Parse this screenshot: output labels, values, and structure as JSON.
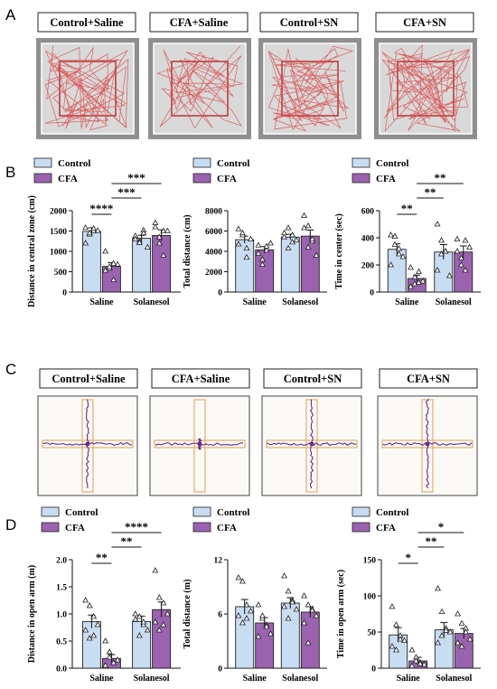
{
  "colors": {
    "control": "#c8dcf2",
    "cfa": "#9b62b0",
    "axis": "#111111",
    "path": "#d94a4a",
    "arm": "#e0b070",
    "trace": "#6a2a8a"
  },
  "panels": {
    "A": {
      "letter": "A",
      "titles": [
        "Control+Saline",
        "CFA+Saline",
        "Control+SN",
        "CFA+SN"
      ]
    },
    "B": {
      "letter": "B"
    },
    "C": {
      "letter": "C",
      "titles": [
        "Control+Saline",
        "CFA+Saline",
        "Control+SN",
        "CFA+SN"
      ]
    },
    "D": {
      "letter": "D"
    }
  },
  "chart_data": [
    {
      "id": "b1",
      "type": "bar",
      "ylabel": "Distance in central zone (cm)",
      "categories": [
        "Saline",
        "Solanesol"
      ],
      "ylim": [
        0,
        2000
      ],
      "yticks": [
        0,
        500,
        1000,
        1500,
        2000
      ],
      "legend": [
        "Control",
        "CFA"
      ],
      "legend_placement": "top-left",
      "series": [
        {
          "name": "Control",
          "values": [
            1490,
            1320
          ],
          "err": [
            90,
            75
          ],
          "points": [
            [
              1580,
              1420,
              1500,
              1510,
              1200,
              1450,
              1560
            ],
            [
              1380,
              1250,
              1520,
              1100,
              1300,
              1210,
              1450
            ]
          ]
        },
        {
          "name": "CFA",
          "values": [
            630,
            1390
          ],
          "err": [
            90,
            140
          ],
          "points": [
            [
              1000,
              580,
              300,
              680,
              530,
              620,
              700
            ],
            [
              1600,
              1200,
              900,
              1500,
              1700,
              1350,
              1500
            ]
          ]
        }
      ],
      "significance": [
        {
          "from": [
            0,
            0
          ],
          "to": [
            0,
            1
          ],
          "label": "****"
        },
        {
          "from": [
            0,
            1
          ],
          "to": [
            1,
            0
          ],
          "label": "***"
        },
        {
          "from": [
            0,
            1
          ],
          "to": [
            1,
            1
          ],
          "label": "***"
        }
      ]
    },
    {
      "id": "b2",
      "type": "bar",
      "ylabel": "Total distance (cm)",
      "categories": [
        "Saline",
        "Solanesol"
      ],
      "ylim": [
        0,
        8000
      ],
      "yticks": [
        0,
        2000,
        4000,
        6000,
        8000
      ],
      "legend": [
        "Control",
        "CFA"
      ],
      "legend_placement": "top-left",
      "series": [
        {
          "name": "Control",
          "values": [
            5150,
            5400
          ],
          "err": [
            350,
            280
          ],
          "points": [
            [
              6200,
              5600,
              4300,
              5200,
              4700,
              5800,
              3400
            ],
            [
              5400,
              6300,
              4900,
              5100,
              5800,
              4300,
              5600
            ]
          ]
        },
        {
          "name": "CFA",
          "values": [
            4150,
            5500
          ],
          "err": [
            320,
            600
          ],
          "points": [
            [
              4600,
              3200,
              4100,
              4800,
              3800,
              2700,
              4500
            ],
            [
              7500,
              6500,
              5000,
              3600,
              6300,
              4400,
              5200
            ]
          ]
        }
      ],
      "significance": []
    },
    {
      "id": "b3",
      "type": "bar",
      "ylabel": "Time in center (sec)",
      "categories": [
        "Saline",
        "Solanesol"
      ],
      "ylim": [
        0,
        600
      ],
      "yticks": [
        0,
        200,
        400,
        600
      ],
      "legend": [
        "Control",
        "CFA"
      ],
      "legend_placement": "top-left",
      "series": [
        {
          "name": "Control",
          "values": [
            315,
            295
          ],
          "err": [
            40,
            55
          ],
          "points": [
            [
              420,
              410,
              320,
              260,
              200,
              350,
              280
            ],
            [
              500,
              380,
              300,
              120,
              160,
              280,
              300
            ]
          ]
        },
        {
          "name": "CFA",
          "values": [
            100,
            295
          ],
          "err": [
            25,
            45
          ],
          "points": [
            [
              180,
              60,
              150,
              80,
              40,
              110,
              70
            ],
            [
              390,
              250,
              160,
              330,
              300,
              200,
              380
            ]
          ]
        }
      ],
      "significance": [
        {
          "from": [
            0,
            0
          ],
          "to": [
            0,
            1
          ],
          "label": "**"
        },
        {
          "from": [
            0,
            1
          ],
          "to": [
            1,
            0
          ],
          "label": "**"
        },
        {
          "from": [
            0,
            1
          ],
          "to": [
            1,
            1
          ],
          "label": "**"
        }
      ]
    },
    {
      "id": "d1",
      "type": "bar",
      "ylabel": "Distance in open arm (m)",
      "categories": [
        "Saline",
        "Solanesol"
      ],
      "ylim": [
        0,
        2.0
      ],
      "yticks": [
        0.0,
        0.5,
        1.0,
        1.5,
        2.0
      ],
      "legend": [
        "Control",
        "CFA"
      ],
      "legend_placement": "top-left",
      "series": [
        {
          "name": "Control",
          "values": [
            0.86,
            0.86
          ],
          "err": [
            0.12,
            0.1
          ],
          "points": [
            [
              1.25,
              1.15,
              0.95,
              0.8,
              0.7,
              0.55,
              0.6
            ],
            [
              1.0,
              0.95,
              0.8,
              0.7,
              0.9,
              0.6,
              0.85
            ]
          ]
        },
        {
          "name": "CFA",
          "values": [
            0.18,
            1.08
          ],
          "err": [
            0.07,
            0.14
          ],
          "points": [
            [
              0.5,
              0.3,
              0.1,
              0.15,
              0.05,
              0.2,
              0.1
            ],
            [
              1.8,
              1.3,
              1.2,
              1.0,
              0.85,
              0.7,
              0.8
            ]
          ]
        }
      ],
      "significance": [
        {
          "from": [
            0,
            0
          ],
          "to": [
            0,
            1
          ],
          "label": "**"
        },
        {
          "from": [
            0,
            1
          ],
          "to": [
            1,
            0
          ],
          "label": "**"
        },
        {
          "from": [
            0,
            1
          ],
          "to": [
            1,
            1
          ],
          "label": "****"
        }
      ]
    },
    {
      "id": "d2",
      "type": "bar",
      "ylabel": "Total distance (m)",
      "categories": [
        "Saline",
        "Solanesol"
      ],
      "ylim": [
        0,
        12
      ],
      "yticks": [
        0,
        6,
        12
      ],
      "legend": [
        "Control",
        "CFA"
      ],
      "legend_placement": "top-left",
      "series": [
        {
          "name": "Control",
          "values": [
            6.8,
            7.2
          ],
          "err": [
            0.8,
            0.6
          ],
          "points": [
            [
              10.0,
              9.6,
              7.0,
              6.3,
              5.8,
              5.0,
              5.5
            ],
            [
              10.2,
              8.5,
              7.5,
              6.5,
              6.8,
              5.5,
              7.3
            ]
          ]
        },
        {
          "name": "CFA",
          "values": [
            5.0,
            6.2
          ],
          "err": [
            0.6,
            0.6
          ],
          "points": [
            [
              7.0,
              5.5,
              4.8,
              3.8,
              3.5,
              5.8,
              4.6
            ],
            [
              8.0,
              7.0,
              6.5,
              5.8,
              5.0,
              2.8,
              6.4
            ]
          ]
        }
      ],
      "significance": []
    },
    {
      "id": "d3",
      "type": "bar",
      "ylabel": "Time in open arm (sec)",
      "categories": [
        "Saline",
        "Solanesol"
      ],
      "ylim": [
        0,
        150
      ],
      "yticks": [
        0,
        50,
        100,
        150
      ],
      "legend": [
        "Control",
        "CFA"
      ],
      "legend_placement": "top-left",
      "series": [
        {
          "name": "Control",
          "values": [
            46,
            53
          ],
          "err": [
            10,
            10
          ],
          "points": [
            [
              85,
              60,
              45,
              38,
              30,
              25,
              40
            ],
            [
              110,
              78,
              55,
              50,
              35,
              45,
              52
            ]
          ]
        },
        {
          "name": "CFA",
          "values": [
            10,
            48
          ],
          "err": [
            5,
            7
          ],
          "points": [
            [
              25,
              15,
              8,
              5,
              3,
              10,
              6
            ],
            [
              75,
              62,
              55,
              40,
              35,
              30,
              50
            ]
          ]
        }
      ],
      "significance": [
        {
          "from": [
            0,
            0
          ],
          "to": [
            0,
            1
          ],
          "label": "*"
        },
        {
          "from": [
            0,
            1
          ],
          "to": [
            1,
            0
          ],
          "label": "**"
        },
        {
          "from": [
            0,
            1
          ],
          "to": [
            1,
            1
          ],
          "label": "*"
        }
      ]
    }
  ]
}
